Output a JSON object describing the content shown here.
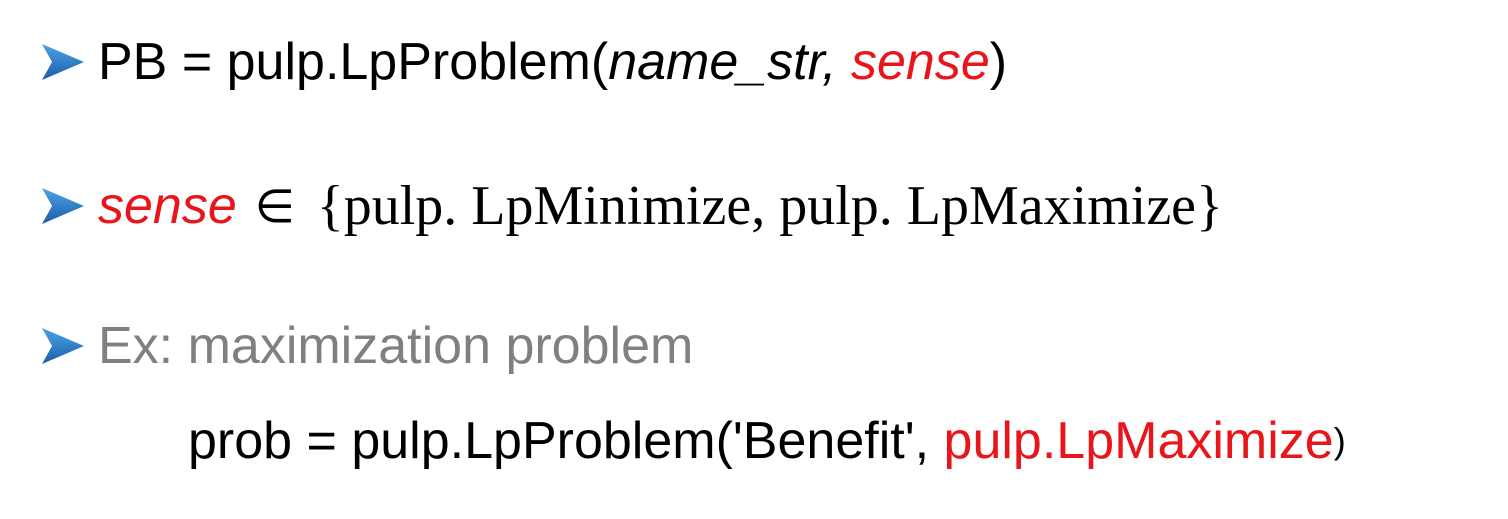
{
  "colors": {
    "bullet": "#1f6fbf",
    "highlight": "#e8161b",
    "muted": "#808080",
    "text": "#000000"
  },
  "line1": {
    "bullet_icon": "arrow-bullet-icon",
    "prefix": "PB = pulp.LpProblem(",
    "arg1": "name_str,",
    "arg2": "sense",
    "suffix": ")"
  },
  "line2": {
    "bullet_icon": "arrow-bullet-icon",
    "var": "sense",
    "element_of": "∈",
    "set_text": "{pulp. LpMinimize, pulp. LpMaximize}"
  },
  "line3": {
    "bullet_icon": "arrow-bullet-icon",
    "text": "Ex: maximization problem"
  },
  "line4": {
    "prefix": "prob = pulp.LpProblem('Benefit', ",
    "highlight": "pulp.LpMaximize",
    "suffix": ")"
  }
}
